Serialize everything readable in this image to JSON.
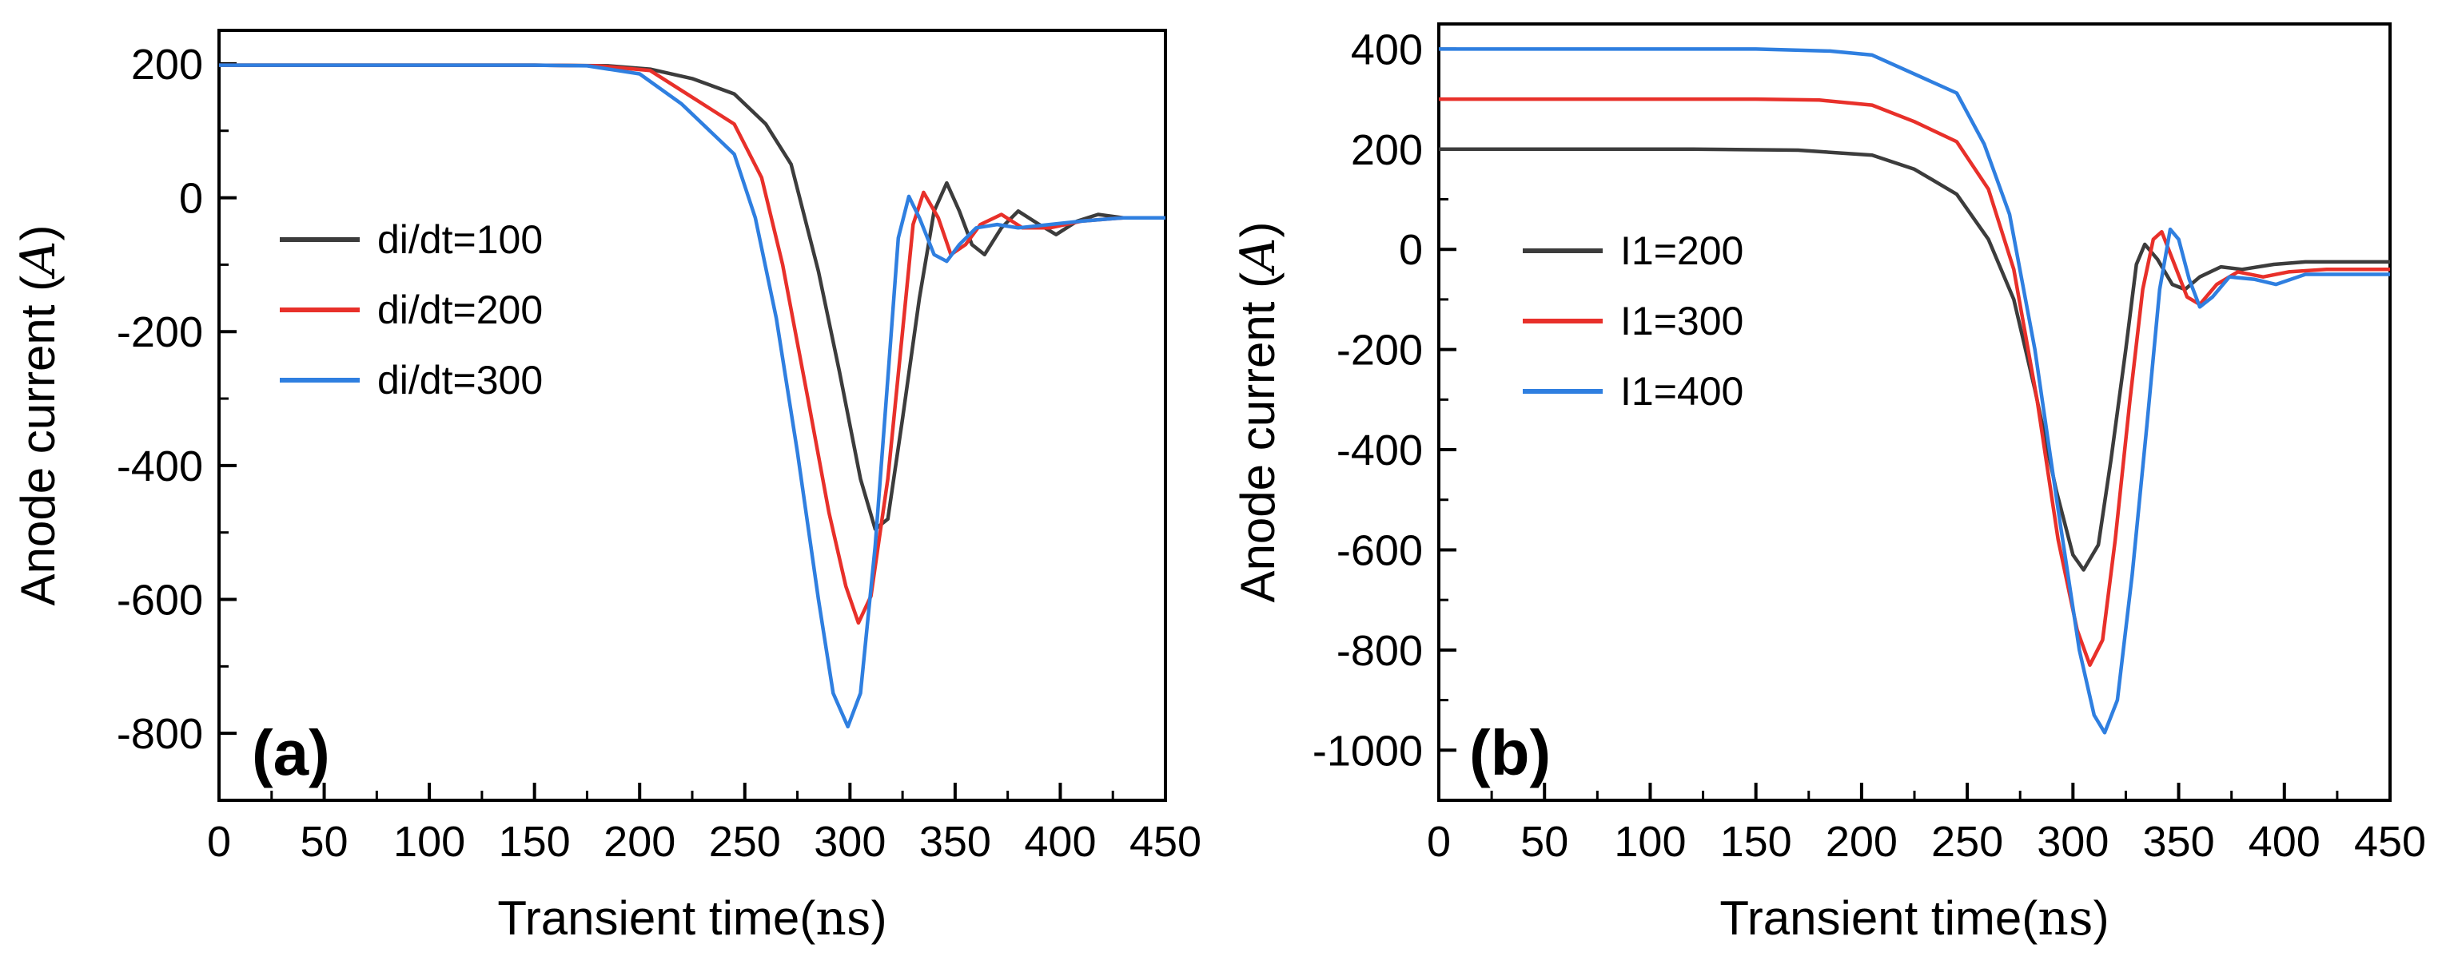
{
  "chart_data": [
    {
      "type": "line",
      "panel_label": "(a)",
      "xlabel": "Transient time",
      "xlabel_unit": "ns",
      "ylabel": "Anode current",
      "ylabel_unit": "A",
      "xlim": [
        0,
        450
      ],
      "ylim": [
        -900,
        250
      ],
      "xticks": [
        0,
        50,
        100,
        150,
        200,
        250,
        300,
        350,
        400,
        450
      ],
      "yticks": [
        200,
        0,
        -200,
        -400,
        -600,
        -800
      ],
      "legend_position": "center-left",
      "series": [
        {
          "name": "di/dt=100",
          "color": "#3c3c3c",
          "points": [
            [
              0,
              198
            ],
            [
              150,
              198
            ],
            [
              185,
              197
            ],
            [
              205,
              192
            ],
            [
              225,
              178
            ],
            [
              245,
              155
            ],
            [
              260,
              110
            ],
            [
              272,
              50
            ],
            [
              285,
              -110
            ],
            [
              295,
              -260
            ],
            [
              305,
              -420
            ],
            [
              312,
              -495
            ],
            [
              318,
              -480
            ],
            [
              325,
              -330
            ],
            [
              333,
              -150
            ],
            [
              340,
              -20
            ],
            [
              346,
              22
            ],
            [
              352,
              -20
            ],
            [
              358,
              -70
            ],
            [
              364,
              -85
            ],
            [
              372,
              -45
            ],
            [
              380,
              -20
            ],
            [
              390,
              -40
            ],
            [
              398,
              -55
            ],
            [
              408,
              -35
            ],
            [
              418,
              -25
            ],
            [
              430,
              -30
            ],
            [
              450,
              -30
            ]
          ]
        },
        {
          "name": "di/dt=200",
          "color": "#e8302a",
          "points": [
            [
              0,
              198
            ],
            [
              150,
              198
            ],
            [
              180,
              197
            ],
            [
              205,
              190
            ],
            [
              225,
              150
            ],
            [
              245,
              110
            ],
            [
              258,
              30
            ],
            [
              268,
              -100
            ],
            [
              280,
              -300
            ],
            [
              290,
              -470
            ],
            [
              298,
              -580
            ],
            [
              304,
              -635
            ],
            [
              310,
              -595
            ],
            [
              318,
              -420
            ],
            [
              325,
              -200
            ],
            [
              330,
              -40
            ],
            [
              335,
              8
            ],
            [
              342,
              -30
            ],
            [
              348,
              -85
            ],
            [
              355,
              -70
            ],
            [
              362,
              -40
            ],
            [
              372,
              -25
            ],
            [
              382,
              -45
            ],
            [
              395,
              -45
            ],
            [
              410,
              -35
            ],
            [
              430,
              -30
            ],
            [
              450,
              -30
            ]
          ]
        },
        {
          "name": "di/dt=300",
          "color": "#2f7fe0",
          "points": [
            [
              0,
              198
            ],
            [
              150,
              198
            ],
            [
              175,
              197
            ],
            [
              200,
              185
            ],
            [
              220,
              140
            ],
            [
              245,
              65
            ],
            [
              255,
              -30
            ],
            [
              265,
              -180
            ],
            [
              275,
              -380
            ],
            [
              285,
              -600
            ],
            [
              292,
              -740
            ],
            [
              299,
              -790
            ],
            [
              305,
              -740
            ],
            [
              312,
              -520
            ],
            [
              318,
              -270
            ],
            [
              323,
              -60
            ],
            [
              328,
              2
            ],
            [
              333,
              -30
            ],
            [
              340,
              -85
            ],
            [
              346,
              -95
            ],
            [
              352,
              -70
            ],
            [
              360,
              -45
            ],
            [
              370,
              -40
            ],
            [
              380,
              -45
            ],
            [
              395,
              -40
            ],
            [
              410,
              -35
            ],
            [
              430,
              -30
            ],
            [
              450,
              -30
            ]
          ]
        }
      ]
    },
    {
      "type": "line",
      "panel_label": "(b)",
      "xlabel": "Transient time",
      "xlabel_unit": "ns",
      "ylabel": "Anode current",
      "ylabel_unit": "A",
      "xlim": [
        0,
        450
      ],
      "ylim": [
        -1100,
        450
      ],
      "xticks": [
        0,
        50,
        100,
        150,
        200,
        250,
        300,
        350,
        400,
        450
      ],
      "yticks": [
        400,
        200,
        0,
        -200,
        -400,
        -600,
        -800,
        -1000
      ],
      "legend_position": "center-left",
      "series": [
        {
          "name": "I1=200",
          "color": "#3c3c3c",
          "points": [
            [
              0,
              200
            ],
            [
              120,
              200
            ],
            [
              170,
              198
            ],
            [
              205,
              188
            ],
            [
              225,
              160
            ],
            [
              245,
              110
            ],
            [
              260,
              20
            ],
            [
              272,
              -100
            ],
            [
              282,
              -280
            ],
            [
              292,
              -480
            ],
            [
              300,
              -610
            ],
            [
              305,
              -640
            ],
            [
              312,
              -590
            ],
            [
              318,
              -420
            ],
            [
              325,
              -200
            ],
            [
              330,
              -30
            ],
            [
              334,
              10
            ],
            [
              340,
              -20
            ],
            [
              347,
              -70
            ],
            [
              353,
              -80
            ],
            [
              360,
              -55
            ],
            [
              370,
              -35
            ],
            [
              380,
              -40
            ],
            [
              395,
              -30
            ],
            [
              410,
              -25
            ],
            [
              450,
              -25
            ]
          ]
        },
        {
          "name": "I1=300",
          "color": "#e8302a",
          "points": [
            [
              0,
              300
            ],
            [
              150,
              300
            ],
            [
              180,
              298
            ],
            [
              205,
              288
            ],
            [
              225,
              255
            ],
            [
              245,
              215
            ],
            [
              260,
              120
            ],
            [
              272,
              -40
            ],
            [
              283,
              -300
            ],
            [
              293,
              -580
            ],
            [
              302,
              -760
            ],
            [
              308,
              -830
            ],
            [
              314,
              -780
            ],
            [
              320,
              -580
            ],
            [
              327,
              -300
            ],
            [
              333,
              -80
            ],
            [
              338,
              20
            ],
            [
              342,
              35
            ],
            [
              348,
              -30
            ],
            [
              354,
              -95
            ],
            [
              360,
              -110
            ],
            [
              368,
              -70
            ],
            [
              378,
              -45
            ],
            [
              390,
              -55
            ],
            [
              402,
              -45
            ],
            [
              420,
              -40
            ],
            [
              450,
              -40
            ]
          ]
        },
        {
          "name": "I1=400",
          "color": "#2f7fe0",
          "points": [
            [
              0,
              400
            ],
            [
              150,
              400
            ],
            [
              185,
              396
            ],
            [
              205,
              388
            ],
            [
              225,
              350
            ],
            [
              245,
              312
            ],
            [
              258,
              210
            ],
            [
              270,
              70
            ],
            [
              282,
              -200
            ],
            [
              293,
              -520
            ],
            [
              303,
              -800
            ],
            [
              310,
              -930
            ],
            [
              315,
              -965
            ],
            [
              321,
              -900
            ],
            [
              328,
              -650
            ],
            [
              335,
              -350
            ],
            [
              341,
              -80
            ],
            [
              346,
              40
            ],
            [
              350,
              20
            ],
            [
              355,
              -60
            ],
            [
              360,
              -115
            ],
            [
              366,
              -95
            ],
            [
              374,
              -55
            ],
            [
              386,
              -60
            ],
            [
              396,
              -70
            ],
            [
              410,
              -50
            ],
            [
              450,
              -50
            ]
          ]
        }
      ]
    }
  ]
}
